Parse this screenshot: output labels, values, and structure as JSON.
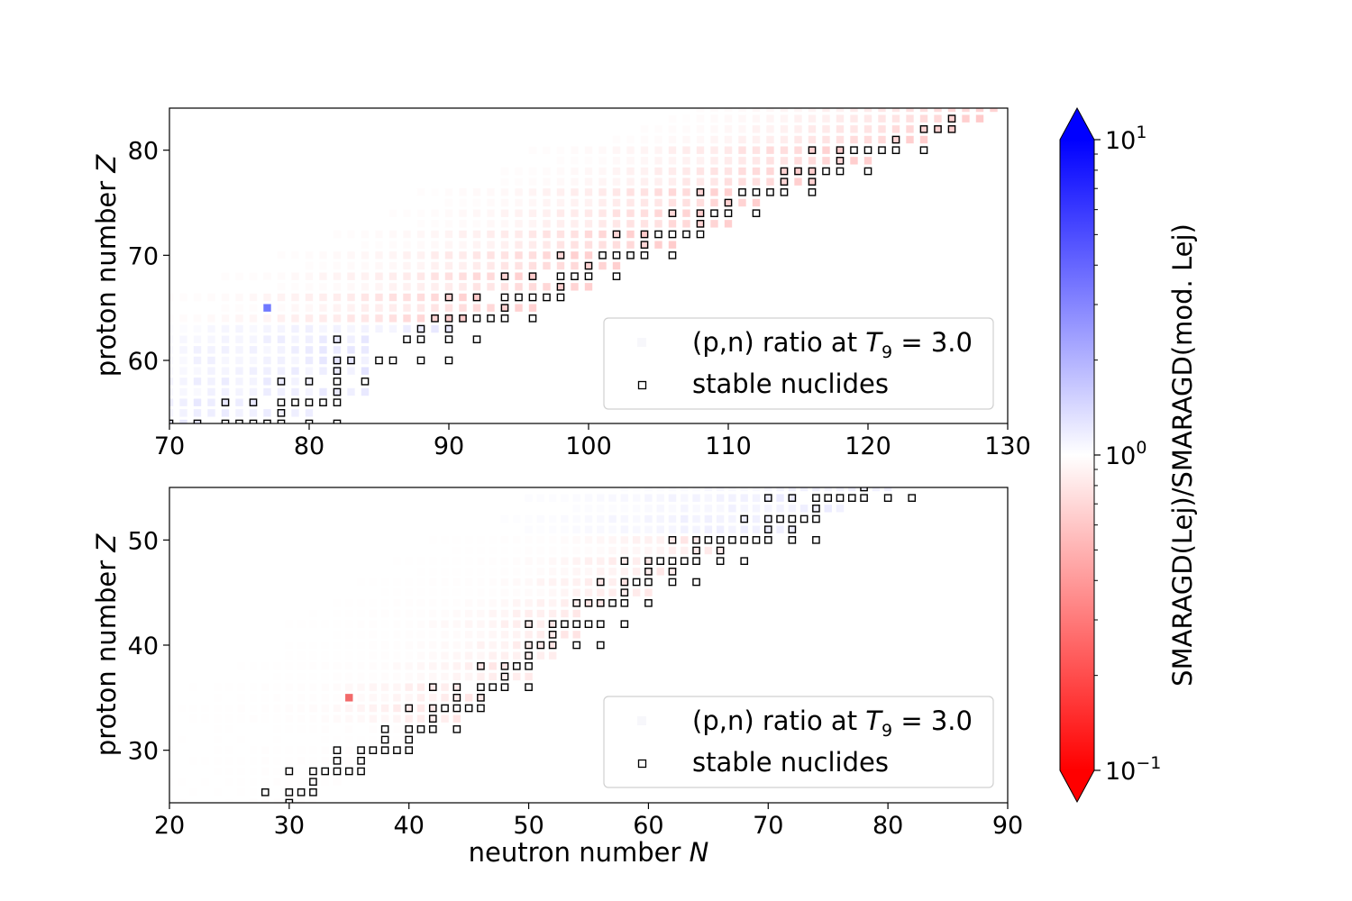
{
  "chart_data": [
    {
      "type": "heatmap",
      "panel": "top",
      "title": "",
      "xlabel": "",
      "ylabel": "proton number Z",
      "ylabel_prefix": "proton number ",
      "ylabel_var": "Z",
      "xlim": [
        70,
        130
      ],
      "ylim": [
        54,
        84
      ],
      "xticks": [
        70,
        80,
        90,
        100,
        110,
        120,
        130
      ],
      "yticks": [
        60,
        70,
        80
      ],
      "grid": false,
      "legend": {
        "placement": "lower-right",
        "entries": [
          {
            "label_prefix": "(p,n) ratio at ",
            "label_var": "T",
            "label_sub": "9",
            "label_suffix": " = 3.0",
            "marker": "faint-square"
          },
          {
            "label": "stable nuclides",
            "marker": "open-square"
          }
        ]
      },
      "highlight_cells": [
        {
          "N": 77,
          "Z": 65,
          "ratio": 3.0,
          "color": "#6f78ff"
        }
      ],
      "stable_nuclides": [
        [
          70,
          54
        ],
        [
          72,
          54
        ],
        [
          74,
          56
        ],
        [
          74,
          54
        ],
        [
          75,
          54
        ],
        [
          76,
          56
        ],
        [
          76,
          54
        ],
        [
          77,
          54
        ],
        [
          78,
          58
        ],
        [
          78,
          56
        ],
        [
          78,
          55
        ],
        [
          78,
          54
        ],
        [
          79,
          56
        ],
        [
          80,
          58
        ],
        [
          80,
          56
        ],
        [
          80,
          54
        ],
        [
          81,
          56
        ],
        [
          82,
          62
        ],
        [
          82,
          60
        ],
        [
          82,
          59
        ],
        [
          82,
          58
        ],
        [
          82,
          57
        ],
        [
          82,
          56
        ],
        [
          82,
          54
        ],
        [
          83,
          60
        ],
        [
          84,
          58
        ],
        [
          85,
          60
        ],
        [
          86,
          60
        ],
        [
          87,
          62
        ],
        [
          88,
          63
        ],
        [
          88,
          62
        ],
        [
          88,
          60
        ],
        [
          89,
          64
        ],
        [
          90,
          66
        ],
        [
          90,
          64
        ],
        [
          90,
          63
        ],
        [
          90,
          62
        ],
        [
          90,
          60
        ],
        [
          91,
          64
        ],
        [
          92,
          66
        ],
        [
          92,
          64
        ],
        [
          92,
          62
        ],
        [
          93,
          64
        ],
        [
          94,
          68
        ],
        [
          94,
          66
        ],
        [
          94,
          65
        ],
        [
          94,
          64
        ],
        [
          95,
          66
        ],
        [
          96,
          68
        ],
        [
          96,
          66
        ],
        [
          96,
          64
        ],
        [
          97,
          66
        ],
        [
          98,
          70
        ],
        [
          98,
          68
        ],
        [
          98,
          67
        ],
        [
          98,
          66
        ],
        [
          99,
          68
        ],
        [
          100,
          69
        ],
        [
          100,
          68
        ],
        [
          101,
          70
        ],
        [
          102,
          72
        ],
        [
          102,
          70
        ],
        [
          102,
          68
        ],
        [
          103,
          70
        ],
        [
          104,
          72
        ],
        [
          104,
          71
        ],
        [
          104,
          70
        ],
        [
          105,
          72
        ],
        [
          106,
          74
        ],
        [
          106,
          72
        ],
        [
          106,
          70
        ],
        [
          107,
          72
        ],
        [
          108,
          76
        ],
        [
          108,
          74
        ],
        [
          108,
          73
        ],
        [
          108,
          72
        ],
        [
          109,
          74
        ],
        [
          110,
          75
        ],
        [
          110,
          74
        ],
        [
          111,
          76
        ],
        [
          112,
          76
        ],
        [
          112,
          74
        ],
        [
          113,
          76
        ],
        [
          114,
          78
        ],
        [
          114,
          77
        ],
        [
          114,
          76
        ],
        [
          115,
          78
        ],
        [
          116,
          80
        ],
        [
          116,
          78
        ],
        [
          116,
          77
        ],
        [
          116,
          76
        ],
        [
          117,
          78
        ],
        [
          118,
          80
        ],
        [
          118,
          79
        ],
        [
          118,
          78
        ],
        [
          119,
          80
        ],
        [
          120,
          80
        ],
        [
          120,
          78
        ],
        [
          121,
          80
        ],
        [
          122,
          81
        ],
        [
          122,
          80
        ],
        [
          124,
          82
        ],
        [
          124,
          80
        ],
        [
          125,
          82
        ],
        [
          126,
          83
        ],
        [
          126,
          82
        ]
      ]
    },
    {
      "type": "heatmap",
      "panel": "bottom",
      "title": "",
      "xlabel": "neutron number N",
      "xlabel_prefix": "neutron number ",
      "xlabel_var": "N",
      "ylabel": "proton number Z",
      "ylabel_prefix": "proton number ",
      "ylabel_var": "Z",
      "xlim": [
        20,
        90
      ],
      "ylim": [
        25,
        55
      ],
      "xticks": [
        20,
        30,
        40,
        50,
        60,
        70,
        80,
        90
      ],
      "yticks": [
        30,
        40,
        50
      ],
      "grid": false,
      "legend": {
        "placement": "lower-right",
        "entries": [
          {
            "label_prefix": "(p,n) ratio at ",
            "label_var": "T",
            "label_sub": "9",
            "label_suffix": " = 3.0",
            "marker": "faint-square"
          },
          {
            "label": "stable nuclides",
            "marker": "open-square"
          }
        ]
      },
      "highlight_cells": [
        {
          "N": 35,
          "Z": 35,
          "ratio": 0.3,
          "color": "#f26a6a"
        }
      ],
      "stable_nuclides": [
        [
          28,
          26
        ],
        [
          30,
          28
        ],
        [
          30,
          26
        ],
        [
          30,
          25
        ],
        [
          31,
          26
        ],
        [
          32,
          28
        ],
        [
          32,
          27
        ],
        [
          32,
          26
        ],
        [
          33,
          28
        ],
        [
          34,
          30
        ],
        [
          34,
          29
        ],
        [
          34,
          28
        ],
        [
          35,
          28
        ],
        [
          36,
          30
        ],
        [
          36,
          29
        ],
        [
          36,
          28
        ],
        [
          37,
          30
        ],
        [
          38,
          32
        ],
        [
          38,
          31
        ],
        [
          38,
          30
        ],
        [
          39,
          30
        ],
        [
          40,
          34
        ],
        [
          40,
          32
        ],
        [
          40,
          31
        ],
        [
          40,
          30
        ],
        [
          41,
          32
        ],
        [
          42,
          36
        ],
        [
          42,
          34
        ],
        [
          42,
          33
        ],
        [
          42,
          32
        ],
        [
          43,
          34
        ],
        [
          44,
          36
        ],
        [
          44,
          35
        ],
        [
          44,
          34
        ],
        [
          44,
          32
        ],
        [
          45,
          34
        ],
        [
          46,
          38
        ],
        [
          46,
          36
        ],
        [
          46,
          35
        ],
        [
          46,
          34
        ],
        [
          47,
          36
        ],
        [
          48,
          38
        ],
        [
          48,
          37
        ],
        [
          48,
          36
        ],
        [
          49,
          38
        ],
        [
          50,
          42
        ],
        [
          50,
          40
        ],
        [
          50,
          39
        ],
        [
          50,
          38
        ],
        [
          50,
          36
        ],
        [
          51,
          40
        ],
        [
          52,
          42
        ],
        [
          52,
          41
        ],
        [
          52,
          40
        ],
        [
          53,
          42
        ],
        [
          54,
          44
        ],
        [
          54,
          42
        ],
        [
          54,
          40
        ],
        [
          55,
          42
        ],
        [
          55,
          44
        ],
        [
          56,
          46
        ],
        [
          56,
          44
        ],
        [
          56,
          42
        ],
        [
          56,
          40
        ],
        [
          57,
          44
        ],
        [
          58,
          48
        ],
        [
          58,
          46
        ],
        [
          58,
          45
        ],
        [
          58,
          44
        ],
        [
          58,
          42
        ],
        [
          59,
          46
        ],
        [
          60,
          48
        ],
        [
          60,
          47
        ],
        [
          60,
          46
        ],
        [
          60,
          44
        ],
        [
          61,
          48
        ],
        [
          62,
          50
        ],
        [
          62,
          48
        ],
        [
          62,
          47
        ],
        [
          62,
          46
        ],
        [
          63,
          48
        ],
        [
          64,
          50
        ],
        [
          64,
          49
        ],
        [
          64,
          48
        ],
        [
          64,
          46
        ],
        [
          65,
          50
        ],
        [
          66,
          50
        ],
        [
          66,
          49
        ],
        [
          66,
          48
        ],
        [
          67,
          50
        ],
        [
          68,
          52
        ],
        [
          68,
          50
        ],
        [
          68,
          48
        ],
        [
          69,
          50
        ],
        [
          70,
          54
        ],
        [
          70,
          52
        ],
        [
          70,
          51
        ],
        [
          70,
          50
        ],
        [
          71,
          52
        ],
        [
          72,
          54
        ],
        [
          72,
          52
        ],
        [
          72,
          51
        ],
        [
          72,
          50
        ],
        [
          73,
          52
        ],
        [
          74,
          54
        ],
        [
          74,
          53
        ],
        [
          74,
          52
        ],
        [
          74,
          50
        ],
        [
          75,
          54
        ],
        [
          76,
          54
        ],
        [
          77,
          54
        ],
        [
          78,
          55
        ],
        [
          78,
          54
        ],
        [
          80,
          54
        ],
        [
          82,
          54
        ]
      ]
    }
  ],
  "colorbar": {
    "label": "SMARAGD(Lej)/SMARAGD(mod. Lej)",
    "scale": "log",
    "range": [
      0.1,
      10
    ],
    "extend": "both",
    "ticks": [
      {
        "value": 10,
        "base": "10",
        "exp": "1"
      },
      {
        "value": 1,
        "base": "10",
        "exp": "0"
      },
      {
        "value": 0.1,
        "base": "10",
        "exp": "−1"
      }
    ],
    "colors": {
      "low": "#ff0000",
      "mid": "#ffffff",
      "high": "#0000ff"
    }
  }
}
